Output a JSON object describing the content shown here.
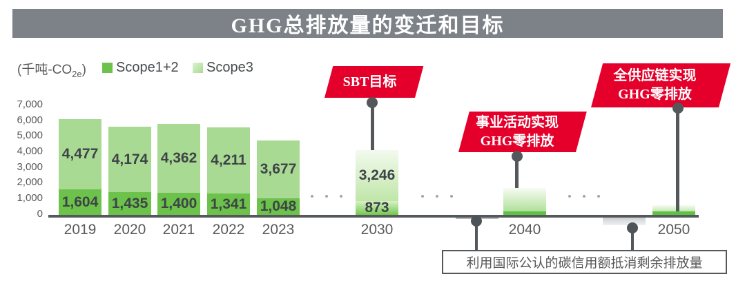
{
  "title": "GHG总排放量的变迁和目标",
  "unit": {
    "prefix": "(千吨-CO",
    "sub": "2e",
    "suffix": ")"
  },
  "legend": [
    {
      "label": "Scope1+2",
      "color": "#6CC24A"
    },
    {
      "label": "Scope3",
      "color": "#A9DA93"
    }
  ],
  "yaxis_ticks": [
    "7,000",
    "6,000",
    "5,000",
    "4,000",
    "3,000",
    "2,000",
    "1,000",
    "0"
  ],
  "xlabels": [
    "2019",
    "2020",
    "2021",
    "2022",
    "2023",
    "2030",
    "2040",
    "2050"
  ],
  "bars": [
    {
      "year": "2019",
      "scope12_label": "1,604",
      "scope3_label": "4,477"
    },
    {
      "year": "2020",
      "scope12_label": "1,435",
      "scope3_label": "4,174"
    },
    {
      "year": "2021",
      "scope12_label": "1,400",
      "scope3_label": "4,362"
    },
    {
      "year": "2022",
      "scope12_label": "1,341",
      "scope3_label": "4,211"
    },
    {
      "year": "2023",
      "scope12_label": "1,048",
      "scope3_label": "3,677"
    },
    {
      "year": "2030",
      "scope12_label": "873",
      "scope3_label": "3,246"
    }
  ],
  "callouts": {
    "sbt": {
      "text": "SBT目标"
    },
    "business": {
      "line1": "事业活动实现",
      "line2": "GHG零排放"
    },
    "supply_chain": {
      "line1": "全供应链实现",
      "line2": "GHG零排放"
    }
  },
  "note": "利用国际公认的碳信用额抵消剩余排放量",
  "colors": {
    "title_bar": "#7C8287",
    "banner_red": "#E4002B",
    "scope12_green": "#6CC24A",
    "scope3_green": "#A9DA93",
    "axis_gray": "#54585A",
    "value_text": "#3E4347"
  },
  "chart_data": {
    "type": "bar",
    "stacked": true,
    "title": "GHG总排放量的变迁和目标",
    "unit": "千吨-CO2e",
    "categories": [
      "2019",
      "2020",
      "2021",
      "2022",
      "2023",
      "2030",
      "2040",
      "2050"
    ],
    "series": [
      {
        "name": "Scope1+2",
        "values": [
          1604,
          1435,
          1400,
          1341,
          1048,
          873,
          null,
          null
        ]
      },
      {
        "name": "Scope3",
        "values": [
          4477,
          4174,
          4362,
          4211,
          3677,
          3246,
          null,
          null
        ]
      }
    ],
    "totals_labeled": [
      6081,
      5609,
      5762,
      5552,
      4725,
      4119,
      null,
      null
    ],
    "estimates": {
      "y2040_total": 1700,
      "y2050_total": 600,
      "y2040_offset": 200,
      "y2050_offset": 550
    },
    "ylim": [
      0,
      7000
    ],
    "ytick_step": 1000,
    "grid": false,
    "legend_position": "top-left",
    "annotations": [
      "SBT目标 (at 2030)",
      "事业活动实现GHG零排放 (at 2040)",
      "全供应链实现GHG零排放 (at 2050)",
      "利用国际公认的碳信用额抵消剩余排放量 (below-axis offsets before 2040 and 2050)"
    ]
  }
}
